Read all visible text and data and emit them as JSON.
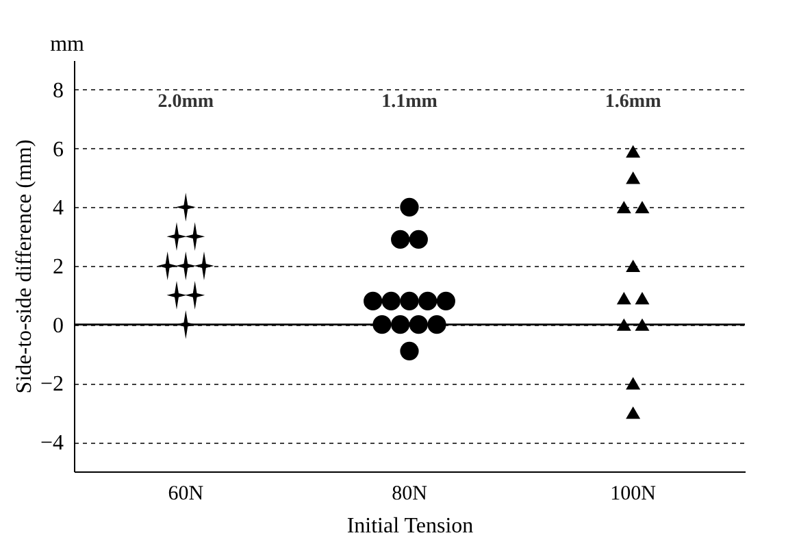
{
  "chart_data": {
    "type": "scatter",
    "xlabel": "Initial Tension",
    "ylabel": "Side-to-side difference (mm)",
    "categories": [
      "60N",
      "80N",
      "100N"
    ],
    "ylim": [
      -5,
      9
    ],
    "yticks": [
      -4,
      -2,
      0,
      2,
      4,
      6,
      8
    ],
    "grid": "y",
    "ref_lines": [
      {
        "axis": "y",
        "value": 0,
        "color": "#000000",
        "line_style": "solid"
      }
    ],
    "annotations": [
      "mm",
      "2.0mm",
      "1.1mm",
      "1.6mm"
    ],
    "series": [
      {
        "color": "#000000",
        "marker": "star",
        "x": [
          "60N",
          "60N",
          "60N",
          "60N",
          "60N",
          "60N",
          "60N",
          "60N",
          "60N"
        ],
        "values": [
          4,
          3,
          3,
          2,
          2,
          2,
          1,
          1,
          0
        ]
      },
      {
        "color": "#000000",
        "marker": "circle",
        "x": [
          "80N",
          "80N",
          "80N",
          "80N",
          "80N",
          "80N",
          "80N",
          "80N",
          "80N",
          "80N",
          "80N",
          "80N",
          "80N"
        ],
        "values": [
          4,
          2.9,
          2.9,
          0.8,
          0.8,
          0.8,
          0.8,
          0.8,
          0,
          0,
          0,
          0,
          -0.9
        ]
      },
      {
        "color": "#000000",
        "marker": "triangle",
        "x": [
          "100N",
          "100N",
          "100N",
          "100N",
          "100N",
          "100N",
          "100N",
          "100N",
          "100N",
          "100N",
          "100N"
        ],
        "values": [
          5.9,
          5,
          4,
          4,
          2,
          0.9,
          0.9,
          0,
          0,
          -2,
          -3
        ]
      }
    ]
  }
}
